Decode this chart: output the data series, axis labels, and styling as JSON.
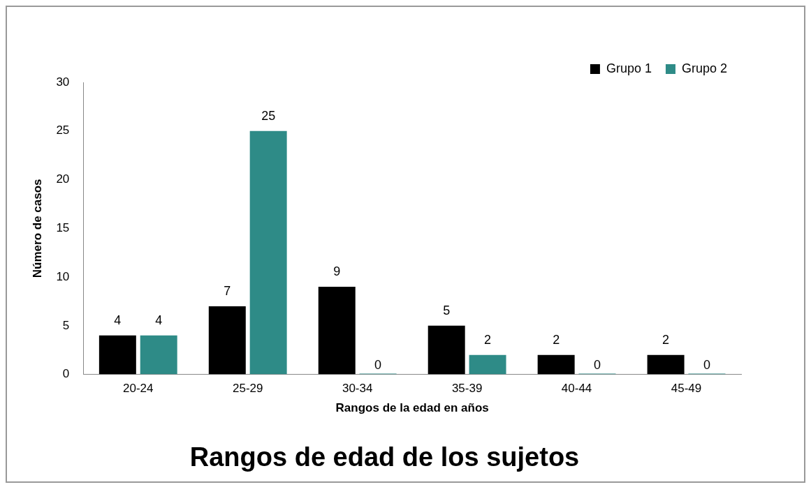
{
  "chart_data": {
    "type": "bar",
    "title": "Rangos de edad de los sujetos",
    "xlabel": "Rangos de la edad en años",
    "ylabel": "Número de casos",
    "categories": [
      "20-24",
      "25-29",
      "30-34",
      "35-39",
      "40-44",
      "45-49"
    ],
    "series": [
      {
        "name": "Grupo 1",
        "color": "#000000",
        "values": [
          4,
          7,
          9,
          5,
          2,
          2
        ]
      },
      {
        "name": "Grupo 2",
        "color": "#2e8b87",
        "values": [
          4,
          25,
          0,
          2,
          0,
          0
        ]
      }
    ],
    "ylim": [
      0,
      30
    ],
    "yticks": [
      0,
      5,
      10,
      15,
      20,
      25,
      30
    ],
    "grid": false,
    "legend": "top right",
    "data_labels": true
  }
}
